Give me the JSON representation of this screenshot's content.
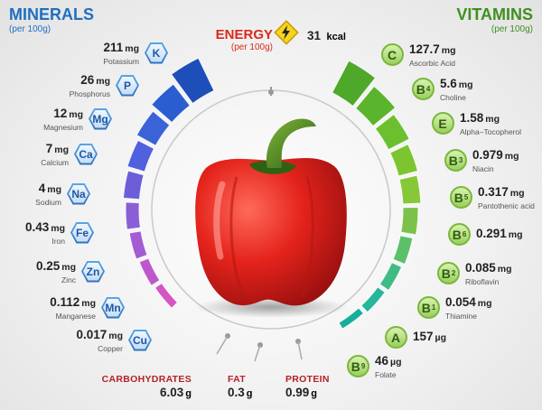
{
  "minerals": {
    "title": "MINERALS",
    "subtitle": "(per 100g)",
    "items": [
      {
        "value": "211",
        "unit": "mg",
        "name": "Potassium",
        "symbol": "K"
      },
      {
        "value": "26",
        "unit": "mg",
        "name": "Phosphorus",
        "symbol": "P"
      },
      {
        "value": "12",
        "unit": "mg",
        "name": "Magnesium",
        "symbol": "Mg"
      },
      {
        "value": "7",
        "unit": "mg",
        "name": "Calcium",
        "symbol": "Ca"
      },
      {
        "value": "4",
        "unit": "mg",
        "name": "Sodium",
        "symbol": "Na"
      },
      {
        "value": "0.43",
        "unit": "mg",
        "name": "Iron",
        "symbol": "Fe"
      },
      {
        "value": "0.25",
        "unit": "mg",
        "name": "Zinc",
        "symbol": "Zn"
      },
      {
        "value": "0.112",
        "unit": "mg",
        "name": "Manganese",
        "symbol": "Mn"
      },
      {
        "value": "0.017",
        "unit": "mg",
        "name": "Copper",
        "symbol": "Cu"
      }
    ]
  },
  "vitamins": {
    "title": "VITAMINS",
    "subtitle": "(per 100g)",
    "items": [
      {
        "letter": "C",
        "sub": "",
        "value": "127.7",
        "unit": "mg",
        "name": "Ascorbic Acid"
      },
      {
        "letter": "B",
        "sub": "4",
        "value": "5.6",
        "unit": "mg",
        "name": "Choline"
      },
      {
        "letter": "E",
        "sub": "",
        "value": "1.58",
        "unit": "mg",
        "name": "Alpha–Tocopherol"
      },
      {
        "letter": "B",
        "sub": "3",
        "value": "0.979",
        "unit": "mg",
        "name": "Niacin"
      },
      {
        "letter": "B",
        "sub": "5",
        "value": "0.317",
        "unit": "mg",
        "name": "Pantothenic acid"
      },
      {
        "letter": "B",
        "sub": "6",
        "value": "0.291",
        "unit": "mg",
        "name": ""
      },
      {
        "letter": "B",
        "sub": "2",
        "value": "0.085",
        "unit": "mg",
        "name": "Riboflavin"
      },
      {
        "letter": "B",
        "sub": "1",
        "value": "0.054",
        "unit": "mg",
        "name": "Thiamine"
      },
      {
        "letter": "A",
        "sub": "",
        "value": "157",
        "unit": "µg",
        "name": ""
      },
      {
        "letter": "B",
        "sub": "9",
        "value": "46",
        "unit": "µg",
        "name": "Folate"
      }
    ]
  },
  "energy": {
    "label": "ENERGY",
    "subtitle": "(per 100g)",
    "value": "31",
    "unit": "kcal"
  },
  "macros": [
    {
      "label": "CARBOHYDRATES",
      "value": "6.03",
      "unit": "g"
    },
    {
      "label": "FAT",
      "value": "0.3",
      "unit": "g"
    },
    {
      "label": "PROTEIN",
      "value": "0.99",
      "unit": "g"
    }
  ],
  "colors": {
    "mineral_title": "#1f6fc0",
    "vitamin_title": "#3f8f1f",
    "energy": "#d9291c",
    "macro_label": "#b52127"
  }
}
